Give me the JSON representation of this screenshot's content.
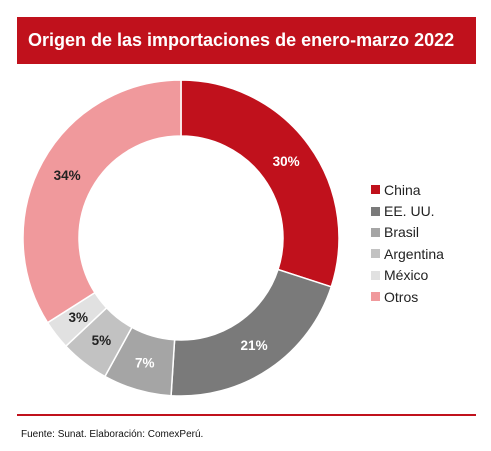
{
  "header": {
    "title": "Origen de las importaciones de enero-marzo 2022"
  },
  "chart_data": {
    "type": "pie",
    "title": "Origen de las importaciones de enero-marzo 2022",
    "donut": true,
    "legend_position": "right",
    "categories": [
      "China",
      "EE. UU.",
      "Brasil",
      "Argentina",
      "México",
      "Otros"
    ],
    "values": [
      30,
      21,
      7,
      5,
      3,
      34
    ],
    "labels": [
      "30%",
      "21%",
      "7%",
      "5%",
      "3%",
      "34%"
    ],
    "colors": [
      "#c0111c",
      "#7a7a7a",
      "#a5a5a5",
      "#c2c2c2",
      "#e1e1e1",
      "#f0999c"
    ],
    "label_colors": [
      "#ffffff",
      "#ffffff",
      "#ffffff",
      "#222222",
      "#222222",
      "#222222"
    ]
  },
  "footer": {
    "source": "Fuente: Sunat. Elaboración: ComexPerú."
  }
}
